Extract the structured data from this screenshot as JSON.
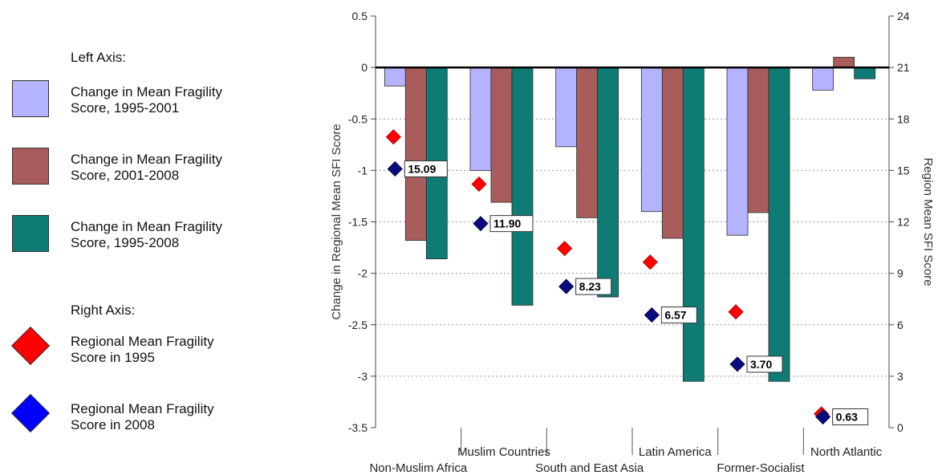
{
  "legend": {
    "left_heading": "Left Axis:",
    "right_heading": "Right Axis:",
    "items": [
      {
        "label_line1": "Change in Mean Fragility",
        "label_line2": "Score, 1995-2001",
        "color": "#b3b3ff",
        "shape": "rect"
      },
      {
        "label_line1": "Change in Mean Fragility",
        "label_line2": "Score, 2001-2008",
        "color": "#a95c5c",
        "shape": "rect"
      },
      {
        "label_line1": "Change in Mean Fragility",
        "label_line2": "Score, 1995-2008",
        "color": "#0e7b74",
        "shape": "rect"
      },
      {
        "label_line1": "Regional Mean Fragility",
        "label_line2": "Score in 1995",
        "color": "#ff0000",
        "shape": "diamond"
      },
      {
        "label_line1": "Regional Mean Fragility",
        "label_line2": "Score in 2008",
        "color": "#0000ff",
        "shape": "diamond"
      }
    ]
  },
  "chart_data": {
    "type": "bar",
    "ylabel": "Change in Regional Mean SFI Score",
    "y2label": "Region Mean SFI Score",
    "ylim": [
      -3.5,
      0.5
    ],
    "yticks": [
      "0.5",
      "0",
      "-0.5",
      "-1",
      "-1.5",
      "-2",
      "-2.5",
      "-3",
      "-3.5"
    ],
    "y2lim": [
      0,
      24
    ],
    "y2ticks": [
      "24",
      "21",
      "18",
      "15",
      "12",
      "9",
      "6",
      "3",
      "0"
    ],
    "grid": "horizontal dotted",
    "categories": [
      "Non-Muslim Africa",
      "Muslim Countries",
      "South and East Asia",
      "Latin America",
      "Former-Socialist",
      "North Atlantic"
    ],
    "series": [
      {
        "name": "Change in Mean Fragility Score, 1995-2001",
        "axis": "left",
        "color": "#b3b3ff",
        "values": [
          -0.18,
          -1.0,
          -0.77,
          -1.4,
          -1.63,
          -0.22
        ]
      },
      {
        "name": "Change in Mean Fragility Score, 2001-2008",
        "axis": "left",
        "color": "#a95c5c",
        "values": [
          -1.68,
          -1.31,
          -1.46,
          -1.66,
          -1.41,
          0.1
        ]
      },
      {
        "name": "Change in Mean Fragility Score, 1995-2008",
        "axis": "left",
        "color": "#0e7b74",
        "values": [
          -1.86,
          -2.31,
          -2.23,
          -3.05,
          -3.05,
          -0.11
        ]
      },
      {
        "name": "Regional Mean Fragility Score in 1995",
        "axis": "right",
        "color": "#ff0000",
        "marker": "diamond",
        "values": [
          16.95,
          14.2,
          10.45,
          9.65,
          6.75,
          0.8
        ]
      },
      {
        "name": "Regional Mean Fragility Score in 2008",
        "axis": "right",
        "color": "#0b0b80",
        "marker": "diamond",
        "values": [
          15.09,
          11.9,
          8.23,
          6.57,
          3.7,
          0.63
        ]
      }
    ],
    "data_labels_2008": [
      "15.09",
      "11.90",
      "8.23",
      "6.57",
      "3.70",
      "0.63"
    ]
  }
}
